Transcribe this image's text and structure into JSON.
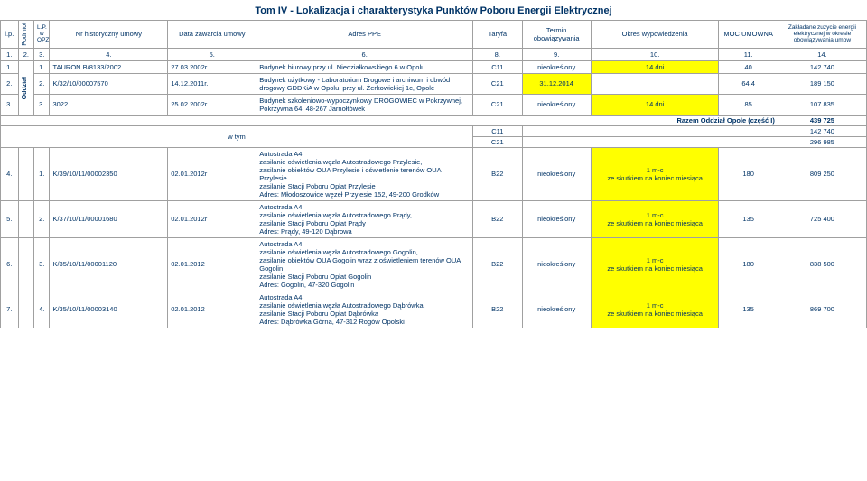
{
  "title": "Tom IV - Lokalizacja i charakterystyka Punktów Poboru Energii Elektrycznej",
  "headers": {
    "lp": "l.p.",
    "podmiot": "Podmiot",
    "opz": "L.P. w OPZ",
    "nr": "Nr historyczny umowy",
    "data": "Data zawarcia umowy",
    "adres": "Adres PPE",
    "taryfa": "Taryfa",
    "termin": "Termin obowiązywania",
    "okres": "Okres wypowiedzenia",
    "moc": "MOC UMOWNA",
    "zaklad": "Zakładane zużycie energii elektrycznej w okresie obowiązywania umow"
  },
  "numrow": [
    "1.",
    "2.",
    "3.",
    "4.",
    "5.",
    "6.",
    "8.",
    "9.",
    "10.",
    "11.",
    "14."
  ],
  "oddzial_label": "Oddział",
  "rows": [
    {
      "lp": "1.",
      "opz": "1.",
      "nr": "TAURON B/8133/2002",
      "data": "27.03.2002r",
      "adres": "Budynek biurowy przy ul. Niedziałkowskiego 6 w Opolu",
      "taryfa": "C11",
      "termin": "nieokreślony",
      "okres": "14 dni",
      "okres_yellow": true,
      "moc": "40",
      "zak": "142 740"
    },
    {
      "lp": "2.",
      "opz": "2.",
      "nr": "K/32/10/00007570",
      "data": "14.12.2011r.",
      "adres": "Budynek użytkowy - Laboratorium Drogowe i archiwum i obwód drogowy GDDKiA w Opolu, przy ul. Żerkowickiej 1c, Opole",
      "taryfa": "C21",
      "termin": "31.12.2014",
      "termin_yellow": true,
      "okres": "",
      "moc": "64,4",
      "zak": "189 150"
    },
    {
      "lp": "3.",
      "opz": "3.",
      "nr": "3022",
      "data": "25.02.2002r",
      "adres": "Budynek szkoleniowo-wypoczynkowy DROGOWIEC w Pokrzywnej, Pokrzywna 64, 48-267 Jarnołtówek",
      "taryfa": "C21",
      "termin": "nieokreślony",
      "okres": "14 dni",
      "okres_yellow": true,
      "moc": "85",
      "zak": "107 835"
    }
  ],
  "summary": {
    "razem_label": "Razem Oddział Opole (część I)",
    "razem_val": "439 725",
    "wtym_label": "w tym",
    "wtym": [
      {
        "taryfa": "C11",
        "val": "142 740"
      },
      {
        "taryfa": "C21",
        "val": "296 985"
      }
    ]
  },
  "rows2": [
    {
      "lp": "4.",
      "opz": "1.",
      "nr": "K/39/10/11/00002350",
      "data": "02.01.2012r",
      "adres": "Autostrada A4\nzasilanie oświetlenia węzła Autostradowego Przylesie,\nzasilanie obiektów OUA Przylesie i oświetlenie terenów OUA Przylesie\nzasilanie Stacji Poboru Opłat Przylesie\nAdres: Młodoszowice węzeł Przylesie 152, 49-200 Grodków",
      "taryfa": "B22",
      "termin": "nieokreślony",
      "okres": "1 m-c\nze skutkiem na koniec miesiąca",
      "okres_yellow": true,
      "moc": "180",
      "zak": "809 250"
    },
    {
      "lp": "5.",
      "opz": "2.",
      "nr": "K/37/10/11/00001680",
      "data": "02.01.2012r",
      "adres": "Autostrada A4\nzasilanie oświetlenia węzła Autostradowego Prądy,\nzasilanie Stacji Poboru Opłat Prądy\nAdres: Prądy, 49-120 Dąbrowa",
      "taryfa": "B22",
      "termin": "nieokreślony",
      "okres": "1 m-c\nze skutkiem na koniec miesiąca",
      "okres_yellow": true,
      "moc": "135",
      "zak": "725 400"
    },
    {
      "lp": "6.",
      "opz": "3.",
      "nr": "K/35/10/11/00001120",
      "data": "02.01.2012",
      "adres": "Autostrada A4\nzasilanie oświetlenia węzła Autostradowego Gogolin,\nzasilanie obiektów OUA Gogolin wraz z oświetleniem terenów OUA Gogolin\nzasilanie Stacji Poboru Opłat Gogolin\nAdres: Gogolin, 47-320 Gogolin",
      "taryfa": "B22",
      "termin": "nieokreślony",
      "okres": "1 m-c\nze skutkiem na koniec miesiąca",
      "okres_yellow": true,
      "moc": "180",
      "zak": "838 500"
    },
    {
      "lp": "7.",
      "opz": "4.",
      "nr": "K/35/10/11/00003140",
      "data": "02.01.2012",
      "adres": "Autostrada A4\nzasilanie oświetlenia węzła Autostradowego Dąbrówka,\nzasilanie Stacji Poboru Opłat Dąbrówka\nAdres: Dąbrówka Górna, 47-312 Rogów Opolski",
      "taryfa": "B22",
      "termin": "nieokreślony",
      "okres": "1 m-c\nze skutkiem na koniec miesiąca",
      "okres_yellow": true,
      "moc": "135",
      "zak": "869 700"
    }
  ]
}
